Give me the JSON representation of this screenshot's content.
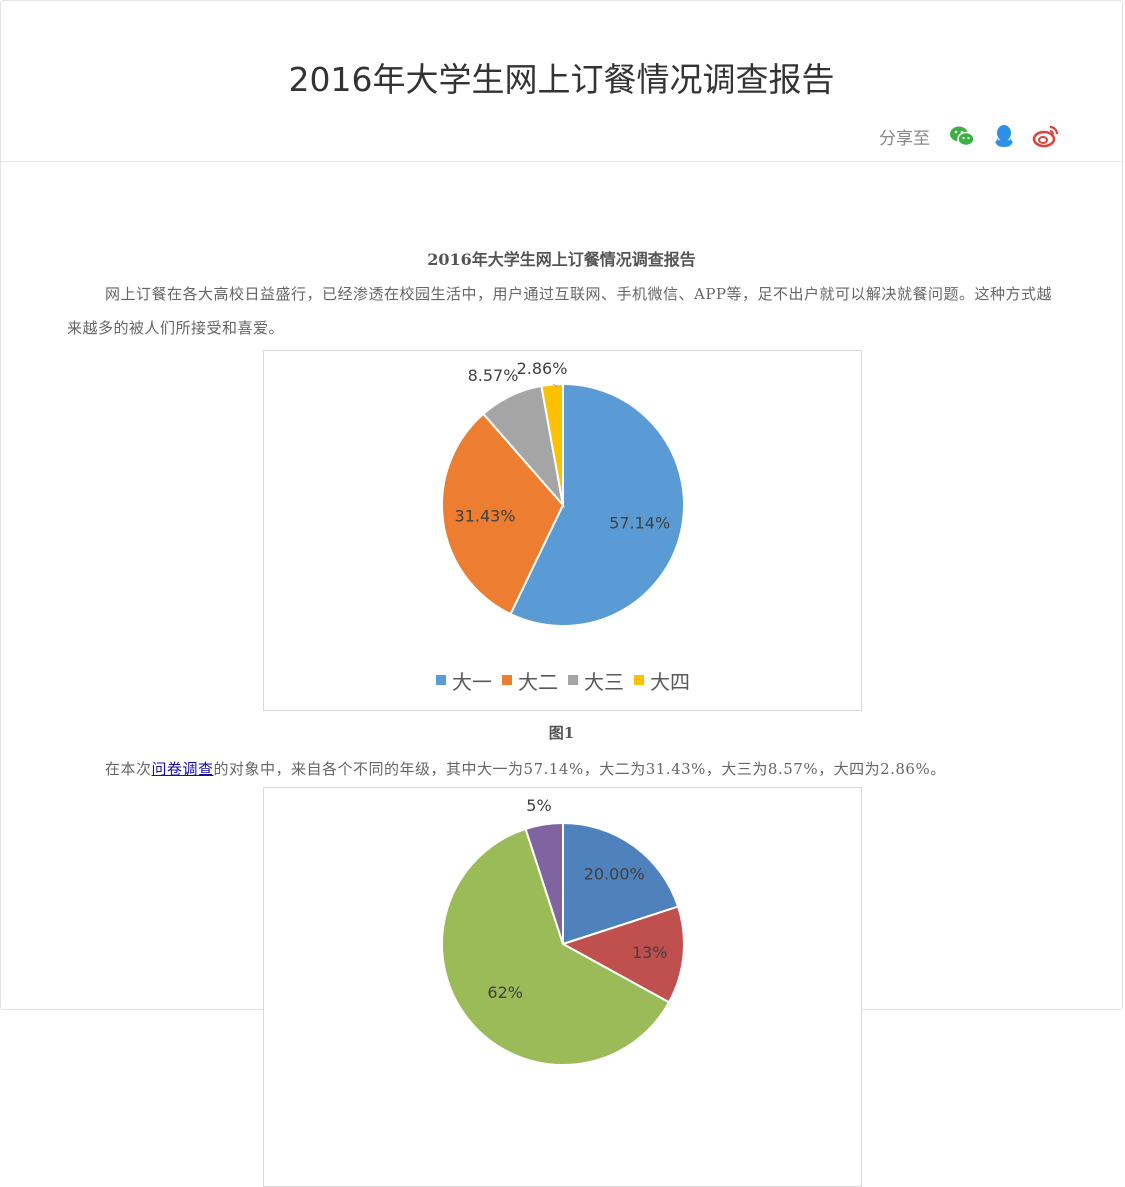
{
  "header": {
    "title": "2016年大学生网上订餐情况调查报告",
    "share_label": "分享至",
    "share_icons": [
      "wechat-icon",
      "qq-icon",
      "weibo-icon"
    ],
    "colors": {
      "wechat": "#3bb043",
      "qq": "#2e8fe6",
      "weibo": "#e0413a"
    }
  },
  "article": {
    "title": "2016年大学生网上订餐情况调查报告",
    "para1": "网上订餐在各大高校日益盛行，已经渗透在校园生活中，用户通过互联网、手机微信、APP等，足不出户就可以解决就餐问题。这种方式越来越多的被人们所接受和喜爱。",
    "fig1_caption": "图1",
    "para2_before": "在本次",
    "para2_link": "问卷调查",
    "para2_after": "的对象中，来自各个不同的年级，其中大一为57.14%，大二为31.43%，大三为8.57%，大四为2.86%。"
  },
  "chart_data": [
    {
      "type": "pie",
      "categories": [
        "大一",
        "大二",
        "大三",
        "大四"
      ],
      "values": [
        57.14,
        31.43,
        8.57,
        2.86
      ],
      "labels": [
        "57.14%",
        "31.43%",
        "8.57%",
        "2.86%"
      ],
      "colors": [
        "#5b9bd5",
        "#ed7d31",
        "#a5a5a5",
        "#ffc000"
      ],
      "legend": "bottom"
    },
    {
      "type": "pie",
      "values": [
        20,
        13,
        62,
        5
      ],
      "labels": [
        "20.00%",
        "13%",
        "62%",
        "5%"
      ],
      "colors": [
        "#4f81bd",
        "#c0504d",
        "#9bbb59",
        "#8064a2"
      ]
    }
  ]
}
